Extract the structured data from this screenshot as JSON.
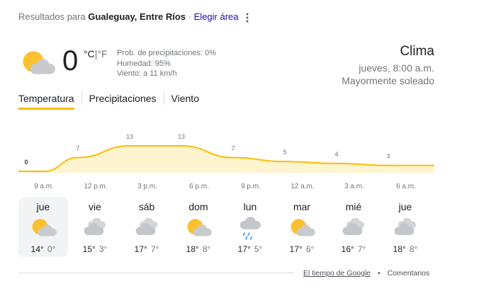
{
  "header": {
    "prefix": "Resultados para",
    "location": "Gualeguay, Entre Ríos",
    "separator": "·",
    "link": "Elegir área"
  },
  "current": {
    "icon": "partly-sunny",
    "temperature": "0",
    "unit_c": "°C",
    "unit_sep": "|",
    "unit_f": "°F",
    "precip": "Prob. de precipitaciones: 0%",
    "humidity": "Humedad: 95%",
    "wind": "Viento: a 11 km/h"
  },
  "summary": {
    "title": "Clima",
    "time": "jueves, 8:00 a.m.",
    "condition": "Mayormente soleado"
  },
  "tabs": {
    "items": [
      "Temperatura",
      "Precipitaciones",
      "Viento"
    ],
    "selected": 0
  },
  "hourly": {
    "times": [
      "9 a.m.",
      "12 p.m.",
      "3 p.m.",
      "6 p.m.",
      "9 p.m.",
      "12 a.m.",
      "3 a.m.",
      "6 a.m."
    ],
    "values": [
      0,
      7,
      13,
      13,
      7,
      5,
      4,
      3
    ],
    "color": "#fbbc04",
    "fill": "#fef4d0"
  },
  "forecast": {
    "selected": 0,
    "days": [
      {
        "name": "jue",
        "icon": "partly-sunny",
        "high": "14°",
        "low": "0°"
      },
      {
        "name": "vie",
        "icon": "cloudy",
        "high": "15°",
        "low": "3°"
      },
      {
        "name": "sáb",
        "icon": "cloudy",
        "high": "17°",
        "low": "7°"
      },
      {
        "name": "dom",
        "icon": "partly-sunny",
        "high": "18°",
        "low": "8°"
      },
      {
        "name": "lun",
        "icon": "rain",
        "high": "17°",
        "low": "5°"
      },
      {
        "name": "mar",
        "icon": "partly-sunny",
        "high": "17°",
        "low": "6°"
      },
      {
        "name": "mié",
        "icon": "cloudy",
        "high": "16°",
        "low": "7°"
      },
      {
        "name": "jue",
        "icon": "cloudy",
        "high": "18°",
        "low": "8°"
      }
    ]
  },
  "footer": {
    "source": "El tiempo de Google",
    "bullet": "•",
    "feedback": "Comentarios"
  }
}
